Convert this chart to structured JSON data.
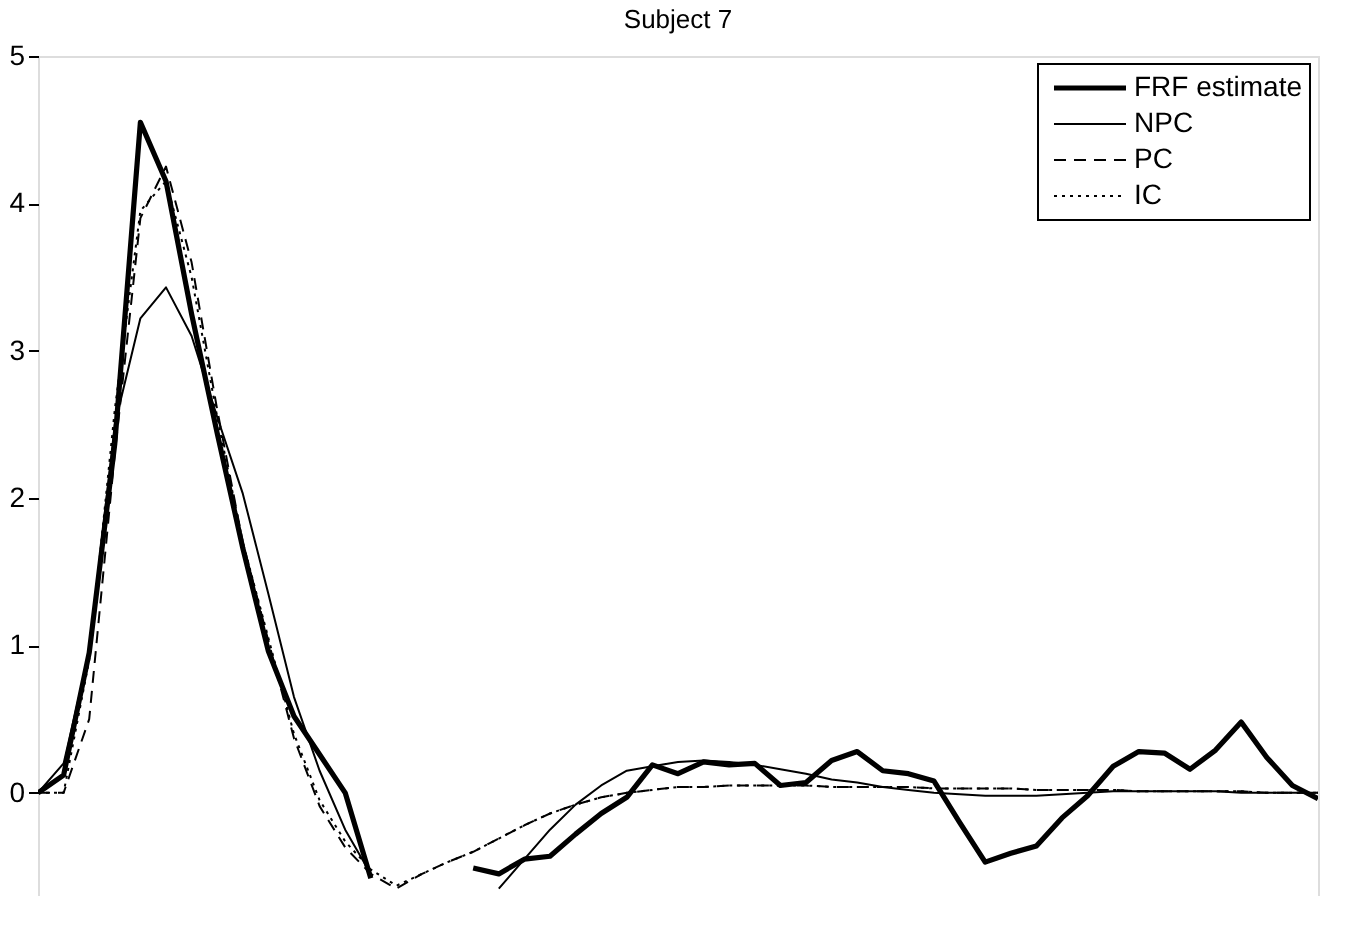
{
  "chart_data": {
    "type": "line",
    "title": "Subject 7",
    "categories": [
      null,
      null,
      null,
      null,
      null,
      null,
      null,
      null,
      null,
      null,
      null,
      null,
      null,
      null,
      null,
      null,
      null,
      null,
      null,
      null,
      null,
      null,
      null,
      null,
      null,
      null,
      null,
      null,
      null,
      null,
      null,
      null,
      null,
      null,
      null,
      null,
      null,
      null,
      null,
      null,
      null,
      null,
      null,
      null,
      null,
      null,
      null,
      null,
      null,
      null,
      null
    ],
    "ylim": [
      -0.7,
      5
    ],
    "yticks": [
      0,
      1,
      2,
      3,
      4,
      5
    ],
    "tick_labels": "y",
    "grid": false,
    "legend": "top right",
    "series": [
      {
        "name": "FRF estimate",
        "color": "#000000",
        "line_style": "solid",
        "values": [
          0,
          0.12,
          0.95,
          2.37,
          4.55,
          4.15,
          3.25,
          2.44,
          1.66,
          0.96,
          0.52,
          0.26,
          0.0,
          -0.58,
          null,
          null,
          null,
          -0.51,
          -0.55,
          -0.45,
          -0.43,
          -0.28,
          -0.14,
          -0.03,
          0.19,
          0.13,
          0.21,
          0.19,
          0.2,
          0.05,
          0.07,
          0.22,
          0.28,
          0.15,
          0.13,
          0.08,
          -0.2,
          -0.47,
          -0.41,
          -0.36,
          -0.17,
          -0.02,
          0.18,
          0.28,
          0.27,
          0.16,
          0.29,
          0.48,
          0.24,
          0.05,
          -0.04
        ]
      },
      {
        "name": "NPC",
        "color": "#000000",
        "line_style": "solid",
        "values": [
          0,
          0.2,
          0.95,
          2.5,
          3.22,
          3.43,
          3.1,
          2.55,
          2.03,
          1.35,
          0.65,
          0.15,
          -0.25,
          -0.55,
          null,
          null,
          null,
          null,
          -0.65,
          -0.45,
          -0.25,
          -0.08,
          0.05,
          0.15,
          0.18,
          0.21,
          0.22,
          0.21,
          0.19,
          0.16,
          0.13,
          0.09,
          0.07,
          0.04,
          0.02,
          0,
          -0.01,
          -0.02,
          -0.02,
          -0.02,
          -0.01,
          0,
          0.01,
          0.01,
          0.01,
          0.01,
          0.01,
          0,
          0,
          0,
          0
        ]
      },
      {
        "name": "PC",
        "color": "#000000",
        "line_style": "dashed",
        "values": [
          0,
          0,
          0.5,
          2.3,
          3.9,
          4.25,
          3.6,
          2.6,
          1.7,
          1.03,
          0.37,
          -0.09,
          -0.37,
          -0.55,
          -0.65,
          -0.55,
          -0.47,
          -0.4,
          -0.31,
          -0.22,
          -0.14,
          -0.08,
          -0.03,
          0,
          0.02,
          0.04,
          0.04,
          0.05,
          0.05,
          0.05,
          0.05,
          0.04,
          0.04,
          0.04,
          0.04,
          0.03,
          0.03,
          0.03,
          0.03,
          0.02,
          0.02,
          0.02,
          0.02,
          0.01,
          0.01,
          0.01,
          0.01,
          0.01,
          0,
          0,
          0
        ]
      },
      {
        "name": "IC",
        "color": "#000000",
        "line_style": "dotted",
        "values": [
          0,
          0,
          0.9,
          2.6,
          3.95,
          4.15,
          3.5,
          2.55,
          1.7,
          1.05,
          0.4,
          -0.05,
          -0.33,
          -0.52,
          -0.63,
          -0.55,
          -0.47,
          -0.4,
          -0.31,
          -0.22,
          -0.14,
          -0.08,
          -0.03,
          0,
          0.02,
          0.04,
          0.04,
          0.05,
          0.05,
          0.05,
          0.05,
          0.04,
          0.04,
          0.04,
          0.04,
          0.03,
          0.03,
          0.03,
          0.03,
          0.02,
          0.02,
          0.02,
          0.02,
          0.01,
          0.01,
          0.01,
          0.01,
          0.01,
          0,
          0,
          0
        ]
      }
    ]
  }
}
